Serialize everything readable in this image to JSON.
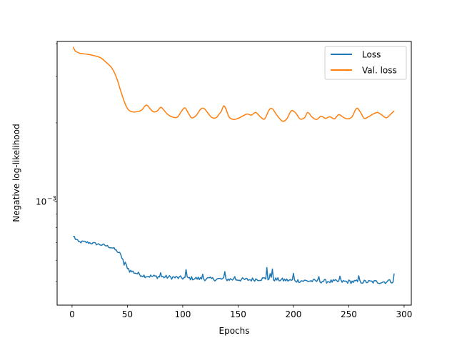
{
  "chart_data": {
    "type": "line",
    "xlabel": "Epochs",
    "ylabel": "Negative log-likelihood",
    "xlim": [
      -13.5,
      306.5
    ],
    "xticks": [
      0,
      50,
      100,
      150,
      200,
      250,
      300
    ],
    "y_scale": "log",
    "ylim": [
      0.000405,
      0.00408
    ],
    "yticks": [
      {
        "value": 0.001,
        "label": "10",
        "exponent": "−3"
      }
    ],
    "grid": false,
    "legend_position": "top-right",
    "series": [
      {
        "name": "Loss",
        "color": "#1f77b4",
        "style": "noisy",
        "points": [
          [
            1,
            0.000735
          ],
          [
            4,
            0.000718
          ],
          [
            6,
            0.000703
          ],
          [
            10,
            0.000705
          ],
          [
            20,
            0.000695
          ],
          [
            30,
            0.000683
          ],
          [
            37,
            0.000668
          ],
          [
            43,
            0.000638
          ],
          [
            47,
            0.000592
          ],
          [
            52,
            0.000548
          ],
          [
            58,
            0.000536
          ],
          [
            65,
            0.000524
          ],
          [
            75,
            0.00052
          ],
          [
            85,
            0.000518
          ],
          [
            100,
            0.000514
          ],
          [
            120,
            0.00051
          ],
          [
            140,
            0.000508
          ],
          [
            160,
            0.000506
          ],
          [
            175,
            0.000511
          ],
          [
            190,
            0.000505
          ],
          [
            200,
            0.000502
          ],
          [
            220,
            0.0005
          ],
          [
            240,
            0.000498
          ],
          [
            260,
            0.000497
          ],
          [
            280,
            0.000496
          ],
          [
            291,
            0.0005
          ]
        ],
        "spikes": [
          [
            2,
            0.00074
          ],
          [
            47,
            0.000575
          ],
          [
            80,
            0.000538
          ],
          [
            103,
            0.000553
          ],
          [
            118,
            0.000531
          ],
          [
            138,
            0.000543
          ],
          [
            147,
            0.00052
          ],
          [
            176,
            0.000563
          ],
          [
            179,
            0.000534
          ],
          [
            181,
            0.000556
          ],
          [
            200,
            0.000535
          ],
          [
            223,
            0.00052
          ],
          [
            242,
            0.000522
          ],
          [
            259,
            0.000524
          ],
          [
            287,
            0.000506
          ],
          [
            291,
            0.000534
          ]
        ]
      },
      {
        "name": "Val. loss",
        "color": "#ff7f0e",
        "style": "smooth",
        "points": [
          [
            1,
            0.00389
          ],
          [
            3,
            0.00375
          ],
          [
            5,
            0.00371
          ],
          [
            8,
            0.00367
          ],
          [
            15,
            0.00364
          ],
          [
            25,
            0.00355
          ],
          [
            30,
            0.00342
          ],
          [
            35,
            0.00327
          ],
          [
            38,
            0.00312
          ],
          [
            41,
            0.0029
          ],
          [
            44,
            0.00264
          ],
          [
            48,
            0.00236
          ],
          [
            51,
            0.00224
          ],
          [
            55,
            0.0022
          ],
          [
            60,
            0.00221
          ],
          [
            63,
            0.00224
          ],
          [
            66,
            0.00232
          ],
          [
            68,
            0.00233
          ],
          [
            71,
            0.00225
          ],
          [
            74,
            0.0022
          ],
          [
            77,
            0.00222
          ],
          [
            80,
            0.00229
          ],
          [
            82,
            0.00226
          ],
          [
            86,
            0.00216
          ],
          [
            90,
            0.00211
          ],
          [
            95,
            0.0021
          ],
          [
            99,
            0.00222
          ],
          [
            102,
            0.00228
          ],
          [
            105,
            0.00218
          ],
          [
            108,
            0.00209
          ],
          [
            112,
            0.00213
          ],
          [
            116,
            0.00225
          ],
          [
            119,
            0.00227
          ],
          [
            122,
            0.0022
          ],
          [
            126,
            0.0021
          ],
          [
            130,
            0.00209
          ],
          [
            133,
            0.00216
          ],
          [
            135,
            0.00222
          ],
          [
            137,
            0.00232
          ],
          [
            139,
            0.00226
          ],
          [
            142,
            0.0021
          ],
          [
            146,
            0.00206
          ],
          [
            150,
            0.00208
          ],
          [
            154,
            0.00212
          ],
          [
            158,
            0.00216
          ],
          [
            162,
            0.00214
          ],
          [
            166,
            0.00219
          ],
          [
            170,
            0.00211
          ],
          [
            174,
            0.00207
          ],
          [
            178,
            0.00224
          ],
          [
            181,
            0.00226
          ],
          [
            185,
            0.00214
          ],
          [
            190,
            0.00203
          ],
          [
            194,
            0.00207
          ],
          [
            198,
            0.00222
          ],
          [
            202,
            0.00218
          ],
          [
            206,
            0.00207
          ],
          [
            210,
            0.00209
          ],
          [
            213,
            0.00219
          ],
          [
            217,
            0.0021
          ],
          [
            221,
            0.00206
          ],
          [
            225,
            0.00212
          ],
          [
            229,
            0.00208
          ],
          [
            233,
            0.00211
          ],
          [
            237,
            0.00207
          ],
          [
            241,
            0.00215
          ],
          [
            245,
            0.0021
          ],
          [
            249,
            0.00207
          ],
          [
            253,
            0.00211
          ],
          [
            256,
            0.00224
          ],
          [
            258,
            0.00227
          ],
          [
            261,
            0.00218
          ],
          [
            264,
            0.00208
          ],
          [
            268,
            0.00211
          ],
          [
            272,
            0.00216
          ],
          [
            276,
            0.00219
          ],
          [
            280,
            0.00214
          ],
          [
            284,
            0.00209
          ],
          [
            288,
            0.00216
          ],
          [
            291,
            0.00222
          ]
        ]
      }
    ]
  }
}
